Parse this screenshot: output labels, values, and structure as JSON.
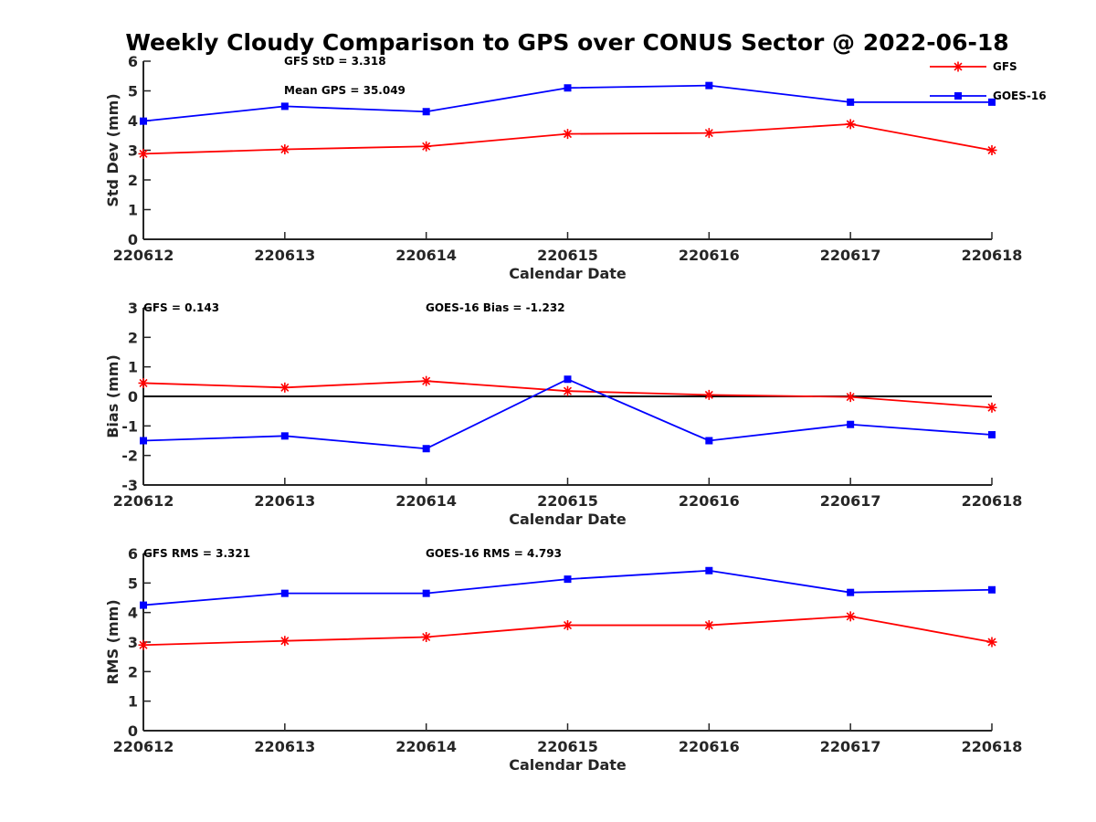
{
  "title": "Weekly Cloudy Comparison to GPS over CONUS Sector @ 2022-06-18",
  "legend": {
    "placement": "top-right",
    "entries": [
      {
        "name": "GFS",
        "color": "#ff0000",
        "marker": "asterisk"
      },
      {
        "name": "GOES-16",
        "color": "#0000ff",
        "marker": "square"
      }
    ]
  },
  "chart_data": [
    {
      "type": "line",
      "xlabel": "Calendar Date",
      "ylabel": "Std Dev (mm)",
      "categories": [
        "220612",
        "220613",
        "220614",
        "220615",
        "220616",
        "220617",
        "220618"
      ],
      "ylim": [
        0,
        6
      ],
      "yticks": [
        "0",
        "1",
        "2",
        "3",
        "4",
        "5",
        "6"
      ],
      "annotations": [
        "GFS StD = 3.318",
        "Mean GPS = 35.049"
      ],
      "series": [
        {
          "name": "GFS",
          "color": "#ff0000",
          "marker": "asterisk",
          "values": [
            2.88,
            3.03,
            3.13,
            3.55,
            3.58,
            3.88,
            3.0
          ]
        },
        {
          "name": "GOES-16",
          "color": "#0000ff",
          "marker": "square",
          "values": [
            3.98,
            4.48,
            4.3,
            5.1,
            5.18,
            4.62,
            4.62
          ]
        }
      ]
    },
    {
      "type": "line",
      "xlabel": "Calendar Date",
      "ylabel": "Bias (mm)",
      "categories": [
        "220612",
        "220613",
        "220614",
        "220615",
        "220616",
        "220617",
        "220618"
      ],
      "ylim": [
        -3,
        3
      ],
      "yticks": [
        "-3",
        "-2",
        "-1",
        "0",
        "1",
        "2",
        "3"
      ],
      "reference_line": 0,
      "annotations": [
        "GFS = 0.143",
        "GOES-16 Bias  = -1.232"
      ],
      "series": [
        {
          "name": "GFS",
          "color": "#ff0000",
          "marker": "asterisk",
          "values": [
            0.45,
            0.3,
            0.52,
            0.18,
            0.05,
            -0.02,
            -0.38
          ]
        },
        {
          "name": "GOES-16",
          "color": "#0000ff",
          "marker": "square",
          "values": [
            -1.5,
            -1.34,
            -1.77,
            0.58,
            -1.5,
            -0.95,
            -1.3
          ]
        }
      ]
    },
    {
      "type": "line",
      "xlabel": "Calendar Date",
      "ylabel": "RMS (mm)",
      "categories": [
        "220612",
        "220613",
        "220614",
        "220615",
        "220616",
        "220617",
        "220618"
      ],
      "ylim": [
        0,
        6
      ],
      "yticks": [
        "0",
        "1",
        "2",
        "3",
        "4",
        "5",
        "6"
      ],
      "annotations": [
        "GFS RMS = 3.321",
        "GOES-16 RMS = 4.793"
      ],
      "series": [
        {
          "name": "GFS",
          "color": "#ff0000",
          "marker": "asterisk",
          "values": [
            2.9,
            3.04,
            3.17,
            3.57,
            3.57,
            3.87,
            3.0
          ]
        },
        {
          "name": "GOES-16",
          "color": "#0000ff",
          "marker": "square",
          "values": [
            4.25,
            4.65,
            4.65,
            5.13,
            5.42,
            4.68,
            4.77
          ]
        }
      ]
    }
  ]
}
